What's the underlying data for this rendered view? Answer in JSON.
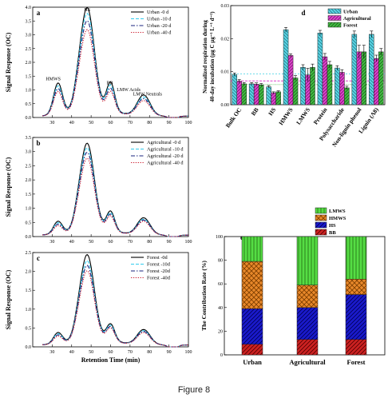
{
  "figure_caption": "Figure 8",
  "chart_data": [
    {
      "panel": "a",
      "type": "line",
      "ylabel": "Signal Response (OC)",
      "xlim": [
        20,
        100
      ],
      "ylim": [
        0,
        4.0
      ],
      "xticks": [
        30,
        40,
        50,
        60,
        70,
        80,
        90,
        100
      ],
      "yticks": [
        0.0,
        0.5,
        1.0,
        1.5,
        2.0,
        2.5,
        3.0,
        3.5,
        4.0
      ],
      "annotations": [
        "HMWS",
        "HS",
        "BB",
        "LMW Acids",
        "LMW Neutrals"
      ],
      "peaks_note": "approximate chromatogram shape: peak heights at retention times 33, 48, 60, 77 min",
      "series": [
        {
          "name": "Urban -0 d",
          "color": "#000000",
          "dash": "solid",
          "peaks": [
            1.15,
            3.7,
            1.05,
            0.75
          ]
        },
        {
          "name": "Urban -10 d",
          "color": "#33ccee",
          "dash": "dash",
          "peaks": [
            1.05,
            3.5,
            0.95,
            0.68
          ]
        },
        {
          "name": "Urban -20 d",
          "color": "#1a237e",
          "dash": "dashdot",
          "peaks": [
            0.95,
            3.25,
            0.85,
            0.62
          ]
        },
        {
          "name": "Urban -40 d",
          "color": "#cc2233",
          "dash": "dot",
          "peaks": [
            0.85,
            2.95,
            0.75,
            0.55
          ]
        }
      ]
    },
    {
      "panel": "b",
      "type": "line",
      "ylabel": "Signal Response (OC)",
      "xlim": [
        20,
        100
      ],
      "ylim": [
        0,
        3.5
      ],
      "xticks": [
        30,
        40,
        50,
        60,
        70,
        80,
        90,
        100
      ],
      "yticks": [
        0.0,
        0.5,
        1.0,
        1.5,
        2.0,
        2.5,
        3.0,
        3.5
      ],
      "series": [
        {
          "name": "Agricultural -0 d",
          "color": "#000000",
          "dash": "solid",
          "peaks": [
            0.45,
            3.05,
            0.7,
            0.6
          ]
        },
        {
          "name": "Agricultural -10 d",
          "color": "#33ccee",
          "dash": "dash",
          "peaks": [
            0.4,
            2.9,
            0.65,
            0.55
          ]
        },
        {
          "name": "Agricultural -20 d",
          "color": "#1a237e",
          "dash": "dashdot",
          "peaks": [
            0.35,
            2.75,
            0.6,
            0.52
          ]
        },
        {
          "name": "Agricultural -40 d",
          "color": "#cc2233",
          "dash": "dot",
          "peaks": [
            0.3,
            2.55,
            0.55,
            0.48
          ]
        }
      ]
    },
    {
      "panel": "c",
      "type": "line",
      "ylabel": "Signal Response (OC)",
      "xlabel": "Retention Time (min)",
      "xlim": [
        20,
        100
      ],
      "ylim": [
        0,
        2.5
      ],
      "xticks": [
        30,
        40,
        50,
        60,
        70,
        80,
        90,
        100
      ],
      "yticks": [
        0.0,
        0.5,
        1.0,
        1.5,
        2.0,
        2.5
      ],
      "series": [
        {
          "name": "Forest -0d",
          "color": "#000000",
          "dash": "solid",
          "peaks": [
            0.3,
            2.25,
            0.45,
            0.4
          ]
        },
        {
          "name": "Forest -10d",
          "color": "#33ccee",
          "dash": "dash",
          "peaks": [
            0.27,
            2.1,
            0.42,
            0.37
          ]
        },
        {
          "name": "Forest -20d",
          "color": "#1a237e",
          "dash": "dashdot",
          "peaks": [
            0.24,
            1.98,
            0.39,
            0.35
          ]
        },
        {
          "name": "Forest -40d",
          "color": "#cc2233",
          "dash": "dot",
          "peaks": [
            0.21,
            1.85,
            0.36,
            0.32
          ]
        }
      ]
    },
    {
      "panel": "d",
      "type": "bar",
      "ylabel_line1": "Normalized respiration during",
      "ylabel_line2": "40-day incubation (μg C μg⁻¹ L⁻¹ d⁻¹)",
      "ylim": [
        0,
        0.03
      ],
      "yticks": [
        0.0,
        0.01,
        0.02,
        0.03
      ],
      "ytick_labels": [
        "0.00",
        "0.01",
        "0.02",
        "0.03"
      ],
      "categories": [
        "Bulk OC",
        "BB",
        "HS",
        "HMWS",
        "LMWS",
        "Protein",
        "Polysaccharide",
        "Non-lignin phenol",
        "Lignin (Λ8)"
      ],
      "reference_lines": [
        {
          "series": "Urban",
          "value": 0.0093
        },
        {
          "series": "Agricultural",
          "value": 0.0072
        },
        {
          "series": "Forest",
          "value": 0.0061
        }
      ],
      "series": [
        {
          "name": "Urban",
          "color": "#5ad6e6",
          "hatch": "backslash",
          "values": [
            0.0091,
            0.0063,
            0.0054,
            0.0227,
            0.0113,
            0.0217,
            0.0111,
            0.0213,
            0.0213
          ],
          "errors": [
            0.0005,
            0.0004,
            0.0004,
            0.0007,
            0.0008,
            0.0008,
            0.0007,
            0.001,
            0.001
          ]
        },
        {
          "name": "Agricultural",
          "color": "#dd44cc",
          "hatch": "slash",
          "values": [
            0.0071,
            0.0062,
            0.0036,
            0.0149,
            0.009,
            0.0145,
            0.0098,
            0.016,
            0.014
          ],
          "errors": [
            0.0005,
            0.0004,
            0.0003,
            0.0005,
            0.002,
            0.001,
            0.0008,
            0.002,
            0.001
          ]
        },
        {
          "name": "Forest",
          "color": "#44bb44",
          "hatch": "slash",
          "values": [
            0.0063,
            0.006,
            0.0039,
            0.0081,
            0.0113,
            0.0121,
            0.0051,
            0.016,
            0.016
          ],
          "errors": [
            0.0004,
            0.0004,
            0.0003,
            0.0007,
            0.001,
            0.001,
            0.0005,
            0.002,
            0.001
          ]
        }
      ]
    },
    {
      "panel": "e",
      "type": "bar",
      "stacked": true,
      "ylabel": "The Contribution Rate (%)",
      "ylim": [
        0,
        100
      ],
      "yticks": [
        0,
        20,
        40,
        60,
        80,
        100
      ],
      "categories": [
        "Urban",
        "Agricultural",
        "Forest"
      ],
      "legend": [
        "LMWS",
        "HMWS",
        "HS",
        "BB"
      ],
      "series": [
        {
          "name": "BB",
          "color": "#cc2222",
          "hatch": "slash",
          "values": [
            9,
            13,
            13
          ]
        },
        {
          "name": "HS",
          "color": "#1a1acc",
          "hatch": "slash",
          "values": [
            30,
            27,
            38
          ]
        },
        {
          "name": "HMWS",
          "color": "#e8882a",
          "hatch": "cross",
          "values": [
            40,
            19,
            13
          ]
        },
        {
          "name": "LMWS",
          "color": "#55dd44",
          "hatch": "vertical",
          "values": [
            21,
            41,
            36
          ]
        }
      ]
    }
  ]
}
